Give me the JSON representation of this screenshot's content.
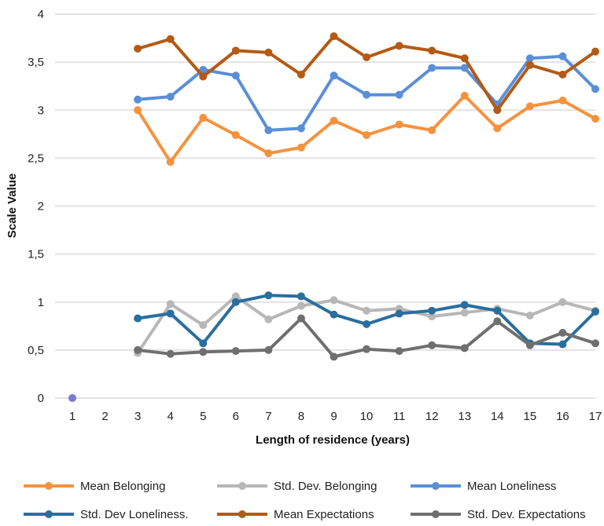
{
  "chart_data": {
    "type": "line",
    "xlabel": "Length of residence (years)",
    "ylabel": "Scale Value",
    "categories": [
      1,
      2,
      3,
      4,
      5,
      6,
      7,
      8,
      9,
      10,
      11,
      12,
      13,
      14,
      15,
      16,
      17
    ],
    "y_tick_labels": [
      "0",
      "0,5",
      "1",
      "1,5",
      "2",
      "2,5",
      "3",
      "3,5",
      "4"
    ],
    "ylim": [
      0,
      4
    ],
    "grid": true,
    "legend_position": "bottom",
    "colors": {
      "mean_belonging": "#f5923e",
      "std_belonging": "#b7b7b7",
      "mean_loneliness": "#5a8fd8",
      "std_loneliness": "#2a6e9e",
      "mean_expectations": "#b45a14",
      "std_expectations": "#6f6f6f",
      "stray_point": "#7a7bd0",
      "gridline": "#e2e2e2"
    },
    "series": [
      {
        "name": "Mean Belonging",
        "color_key": "mean_belonging",
        "values": [
          null,
          null,
          3.0,
          2.46,
          2.92,
          2.74,
          2.55,
          2.61,
          2.89,
          2.74,
          2.85,
          2.79,
          3.15,
          2.81,
          3.04,
          3.1,
          2.91
        ]
      },
      {
        "name": "Std. Dev. Belonging",
        "color_key": "std_belonging",
        "values": [
          null,
          null,
          0.47,
          0.98,
          0.76,
          1.06,
          0.82,
          0.96,
          1.02,
          0.91,
          0.93,
          0.85,
          0.89,
          0.93,
          0.86,
          1.0,
          0.91
        ]
      },
      {
        "name": "Mean Loneliness",
        "color_key": "mean_loneliness",
        "values": [
          null,
          null,
          3.11,
          3.14,
          3.42,
          3.36,
          2.79,
          2.81,
          3.36,
          3.16,
          3.16,
          3.44,
          3.44,
          3.06,
          3.54,
          3.56,
          3.22
        ]
      },
      {
        "name": "Std. Dev Loneliness.",
        "color_key": "std_loneliness",
        "values": [
          null,
          null,
          0.83,
          0.88,
          0.57,
          1.0,
          1.07,
          1.06,
          0.87,
          0.77,
          0.88,
          0.91,
          0.97,
          0.91,
          0.57,
          0.56,
          0.9
        ]
      },
      {
        "name": "Mean Expectations",
        "color_key": "mean_expectations",
        "values": [
          null,
          null,
          3.64,
          3.74,
          3.35,
          3.62,
          3.6,
          3.37,
          3.77,
          3.55,
          3.67,
          3.62,
          3.54,
          3.0,
          3.47,
          3.37,
          3.61
        ]
      },
      {
        "name": "Std. Dev. Expectations",
        "color_key": "std_expectations",
        "values": [
          null,
          null,
          0.5,
          0.46,
          0.48,
          0.49,
          0.5,
          0.83,
          0.43,
          0.51,
          0.49,
          0.55,
          0.52,
          0.8,
          0.55,
          0.68,
          0.57
        ]
      }
    ],
    "stray_points": [
      {
        "x": 1,
        "y": 0.0,
        "color_key": "stray_point"
      }
    ]
  }
}
